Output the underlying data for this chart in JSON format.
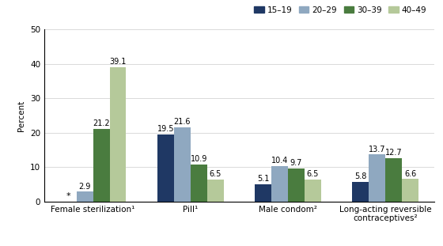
{
  "categories": [
    "Female sterilization¹",
    "Pill¹",
    "Male condom²",
    "Long-acting reversible\ncontraceptives²"
  ],
  "age_groups": [
    "15–19",
    "20–29",
    "30–39",
    "40–49"
  ],
  "values": [
    [
      null,
      2.9,
      21.2,
      39.1
    ],
    [
      19.5,
      21.6,
      10.9,
      6.5
    ],
    [
      5.1,
      10.4,
      9.7,
      6.5
    ],
    [
      5.8,
      13.7,
      12.7,
      6.6
    ]
  ],
  "colors": [
    "#1f3864",
    "#8fa8c0",
    "#4a7c3f",
    "#b5c99a"
  ],
  "ylim": [
    0,
    50
  ],
  "yticks": [
    0,
    10,
    20,
    30,
    40,
    50
  ],
  "ylabel": "Percent",
  "bar_width": 0.17,
  "background_color": "#ffffff",
  "label_fontsize": 7,
  "axis_fontsize": 7.5,
  "legend_fontsize": 7.5
}
